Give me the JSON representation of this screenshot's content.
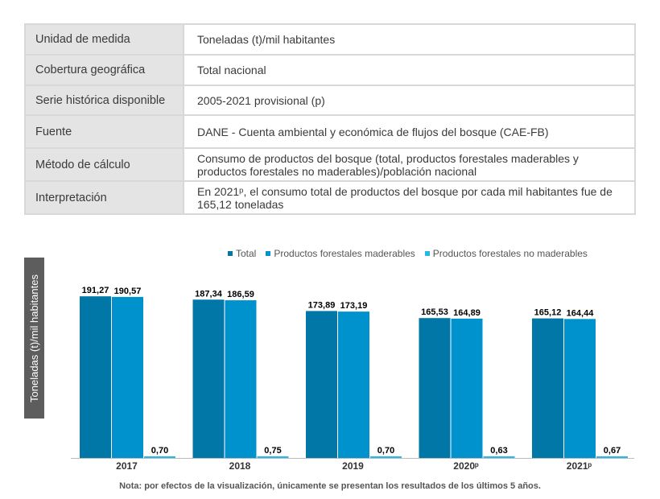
{
  "info_table": [
    {
      "key": "Unidad de medida",
      "value": "Toneladas (t)/mil habitantes"
    },
    {
      "key": "Cobertura geográfica",
      "value": "Total nacional"
    },
    {
      "key": "Serie histórica disponible",
      "value": "2005-2021 provisional (p)"
    },
    {
      "key": "Fuente",
      "value": "DANE - Cuenta ambiental y económica de flujos del bosque (CAE-FB)"
    },
    {
      "key": "Método de cálculo",
      "value": "Consumo de productos del bosque (total, productos forestales maderables y productos forestales no maderables)/población nacional"
    },
    {
      "key": "Interpretación",
      "value": "En 2021ᵖ, el consumo total de productos del bosque por cada mil habitantes fue de 165,12 toneladas"
    }
  ],
  "chart_data": {
    "type": "bar",
    "categories": [
      "2017",
      "2018",
      "2019",
      "2020ᵖ",
      "2021ᵖ"
    ],
    "series": [
      {
        "name": "Total",
        "values": [
          191.27,
          187.34,
          173.89,
          165.53,
          165.12
        ],
        "labels": [
          "191,27",
          "187,34",
          "173,89",
          "165,53",
          "165,12"
        ],
        "color": "#0077a6"
      },
      {
        "name": "Productos forestales maderables",
        "values": [
          190.57,
          186.59,
          173.19,
          164.89,
          164.44
        ],
        "labels": [
          "190,57",
          "186,59",
          "173,19",
          "164,89",
          "164,44"
        ],
        "color": "#0092cc"
      },
      {
        "name": "Productos forestales no maderables",
        "values": [
          0.7,
          0.75,
          0.7,
          0.63,
          0.67
        ],
        "labels": [
          "0,70",
          "0,75",
          "0,70",
          "0,63",
          "0,67"
        ],
        "color": "#29b6e8"
      }
    ],
    "ylabel": "Toneladas (t)/mil habitantes",
    "ylim": [
      0,
      200
    ],
    "grid": false,
    "legend": "top-right"
  },
  "note": "Nota: por efectos de la visualización, únicamente se presentan los resultados de los últimos 5 años.",
  "colors": {
    "axis": "#bbbbbb",
    "ylabel_bg": "#5d5d5d"
  }
}
